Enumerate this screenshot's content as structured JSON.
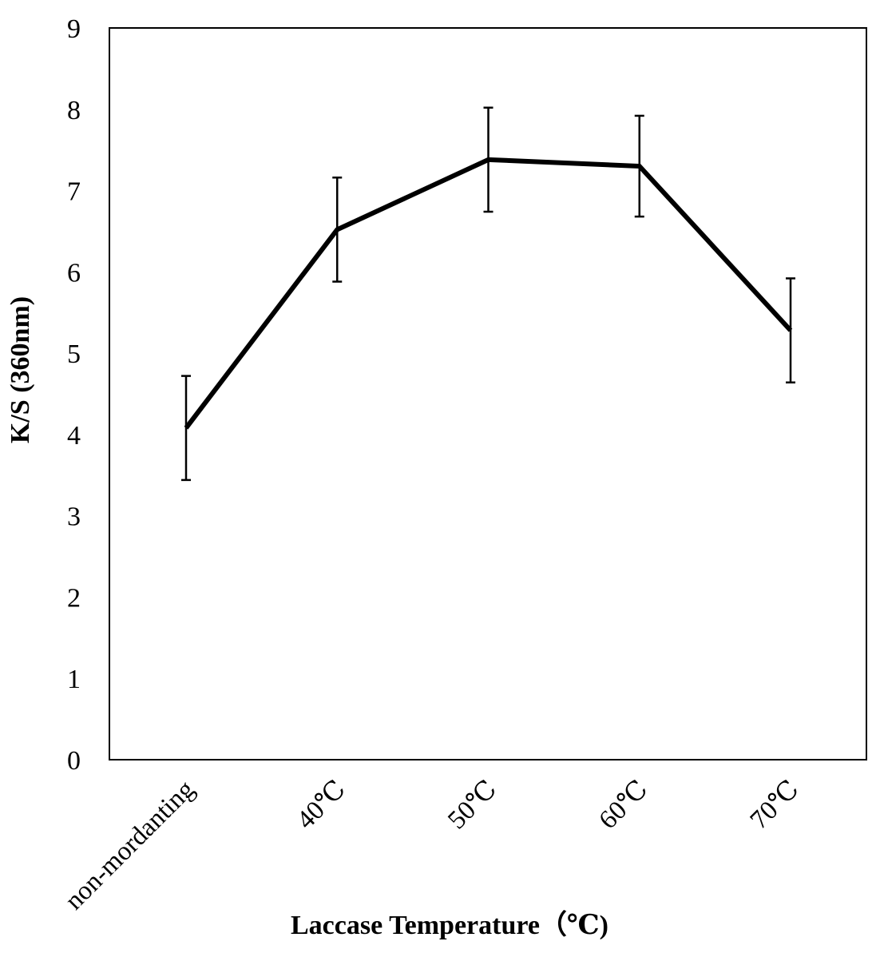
{
  "chart_data": {
    "type": "line",
    "title": "",
    "xlabel": "Laccase Temperature（℃)",
    "ylabel": "K/S (360nm)",
    "categories": [
      "non-mordanting",
      "40℃",
      "50℃",
      "60℃",
      "70℃"
    ],
    "series": [
      {
        "values": [
          4.08,
          6.52,
          7.38,
          7.3,
          5.28
        ],
        "error": [
          0.64,
          0.64,
          0.64,
          0.62,
          0.64
        ]
      }
    ],
    "ylim": [
      0,
      9
    ],
    "yticks": [
      "0",
      "1",
      "2",
      "3",
      "4",
      "5",
      "6",
      "7",
      "8",
      "9"
    ],
    "grid": false,
    "legend": "none",
    "line_color": "#000000"
  }
}
